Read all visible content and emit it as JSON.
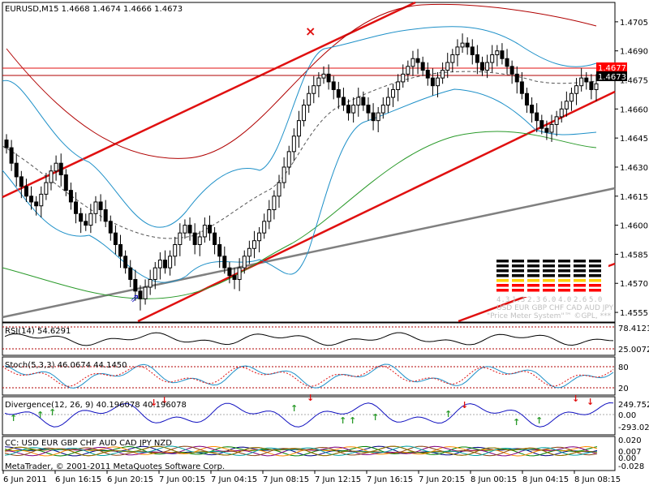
{
  "window": {
    "symbol_label": "EURUSD,M15  1.4668 1.4674 1.4666 1.4673",
    "footer": "MetaTrader, © 2001-2011 MetaQuotes Software Corp."
  },
  "colors": {
    "background": "#ffffff",
    "bull_candle": "#ffffff",
    "bear_candle": "#000000",
    "channel": "#e01010",
    "bollinger": "#1e90c8",
    "ma_dark_red": "#b00000",
    "ma_green": "#2a9a2a",
    "trend_gray": "#808080",
    "price_box": "#ff0000",
    "current_price_box": "#000000"
  },
  "main_chart": {
    "y_ticks": [
      "1.4705",
      "1.4690",
      "1.4675",
      "1.4660",
      "1.4645",
      "1.4630",
      "1.4615",
      "1.4600",
      "1.4585",
      "1.4570",
      "1.4555"
    ],
    "price_labels": [
      {
        "value": "1.4677",
        "kind": "line"
      },
      {
        "value": "1.4673",
        "kind": "current"
      }
    ],
    "x_ticks": [
      "6 Jun 2011",
      "6 Jun 16:15",
      "6 Jun 20:15",
      "7 Jun 00:15",
      "7 Jun 04:15",
      "7 Jun 08:15",
      "7 Jun 12:15",
      "7 Jun 16:15",
      "7 Jun 20:15",
      "8 Jun 00:15",
      "8 Jun 04:15",
      "8 Jun 08:15"
    ],
    "markers": {
      "cross": "×",
      "blue_arrow": "⇗"
    }
  },
  "price_meter": {
    "values": [
      "4.3",
      "1.3",
      "2.3",
      "6.0",
      "4.0",
      "2.6",
      "5.0"
    ],
    "currencies": "USD EUR GBP CHF CAD AUD JPY",
    "caption": "\"Price Meter System\"™ ©GPL, ***"
  },
  "rsi": {
    "label": "RSI(14) 54.6291",
    "ticks": [
      "78.4121",
      "25.0072"
    ]
  },
  "stoch": {
    "label": "Stoch(5,3,3) 46.0674 44.1450",
    "ticks": [
      "80",
      "20"
    ]
  },
  "divergence": {
    "label": "Divergence(12, 26, 9) 40.196078 40.196078",
    "ticks": [
      "249.7521",
      "0.00",
      "-293.026"
    ]
  },
  "cc": {
    "label": "CC: USD EUR GBP CHF AUD CAD JPY NZD",
    "ticks": [
      "0.020",
      "0.007",
      "0.00",
      "-0.028"
    ]
  },
  "chart_data": {
    "type": "candlestick",
    "symbol": "EURUSD",
    "timeframe": "M15",
    "ohlc": {
      "open": 1.4668,
      "high": 1.4674,
      "low": 1.4666,
      "close": 1.4673
    },
    "ylim": [
      1.455,
      1.4715
    ],
    "horizontal_lines": [
      1.4677,
      1.4673
    ],
    "close_series": [
      1.464,
      1.4632,
      1.4625,
      1.462,
      1.4615,
      1.4612,
      1.461,
      1.4616,
      1.4622,
      1.4628,
      1.4632,
      1.4626,
      1.4618,
      1.4612,
      1.4606,
      1.4602,
      1.46,
      1.4606,
      1.4612,
      1.4608,
      1.4602,
      1.4596,
      1.459,
      1.4584,
      1.4578,
      1.4572,
      1.4566,
      1.4562,
      1.4568,
      1.4572,
      1.4578,
      1.4582,
      1.4578,
      1.4584,
      1.459,
      1.4596,
      1.46,
      1.4596,
      1.459,
      1.4594,
      1.46,
      1.4596,
      1.459,
      1.4584,
      1.4578,
      1.4574,
      1.4572,
      1.4578,
      1.4584,
      1.4588,
      1.4592,
      1.4596,
      1.4602,
      1.4608,
      1.4615,
      1.4622,
      1.463,
      1.4638,
      1.4646,
      1.4654,
      1.4662,
      1.4668,
      1.4672,
      1.4676,
      1.4678,
      1.4674,
      1.467,
      1.4666,
      1.4662,
      1.4658,
      1.4662,
      1.4666,
      1.4662,
      1.4658,
      1.4654,
      1.4658,
      1.4662,
      1.4666,
      1.467,
      1.4674,
      1.4678,
      1.4682,
      1.4686,
      1.4684,
      1.468,
      1.4676,
      1.4672,
      1.4676,
      1.468,
      1.4684,
      1.4688,
      1.4692,
      1.4694,
      1.4692,
      1.4688,
      1.4684,
      1.468,
      1.4684,
      1.4688,
      1.469,
      1.4686,
      1.4682,
      1.4678,
      1.4674,
      1.4668,
      1.4662,
      1.4658,
      1.4654,
      1.465,
      1.4648,
      1.4652,
      1.4656,
      1.466,
      1.4664,
      1.4668,
      1.4672,
      1.4676,
      1.4674,
      1.467,
      1.4673
    ]
  }
}
